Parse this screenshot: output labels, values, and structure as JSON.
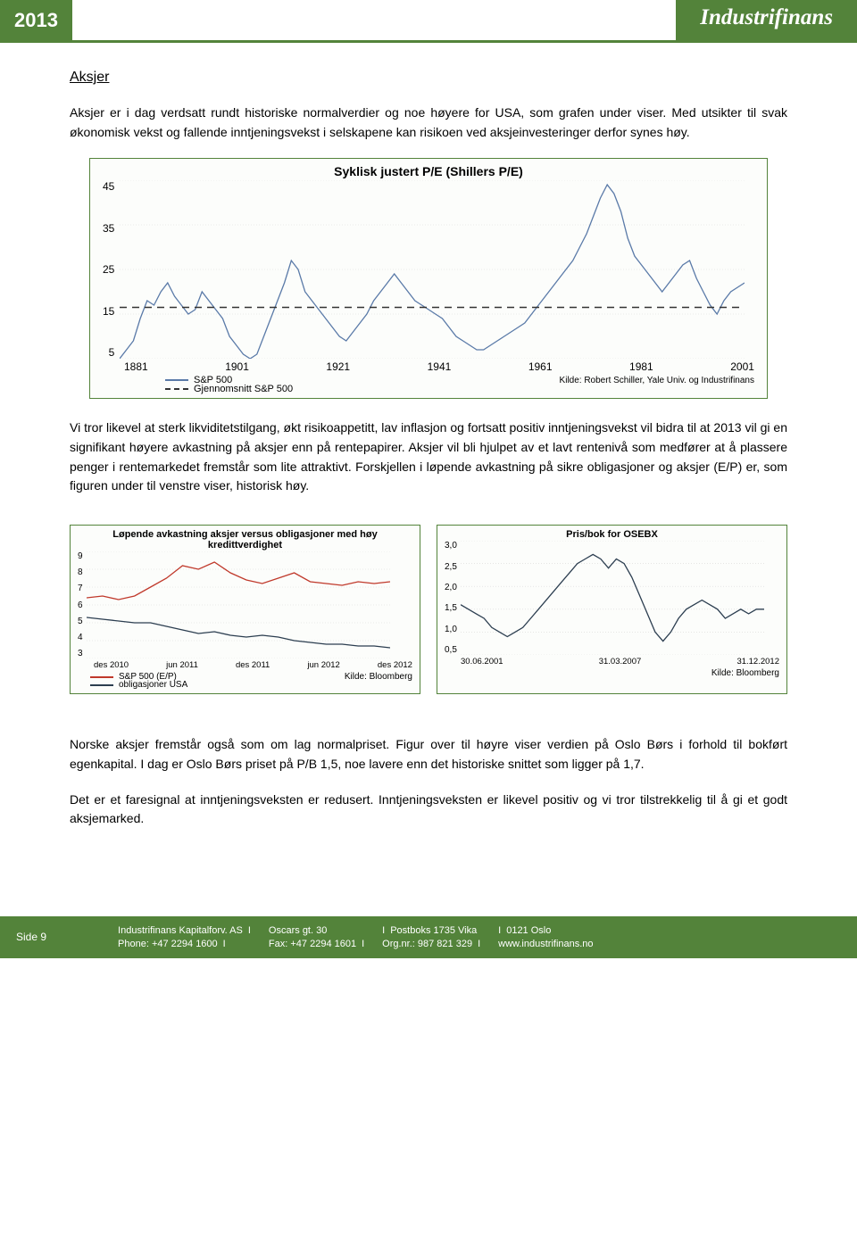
{
  "header": {
    "year": "2013",
    "logo": "Industrifinans"
  },
  "section_title": "Aksjer",
  "para1": "Aksjer er i dag verdsatt rundt historiske normalverdier og noe høyere for USA, som grafen under viser. Med utsikter til svak økonomisk vekst og fallende inntjeningsvekst i selskapene kan risikoen ved aksjeinvesteringer derfor synes høy.",
  "para2": "Vi tror likevel at sterk likviditetstilgang, økt risikoappetitt, lav inflasjon og fortsatt positiv inntjeningsvekst vil bidra til at 2013 vil gi en signifikant høyere avkastning på aksjer enn på rentepapirer. Aksjer vil bli hjulpet av et lavt rentenivå som medfører at å plassere penger i rentemarkedet fremstår som lite attraktivt. Forskjellen i løpende avkastning på sikre obligasjoner og aksjer (E/P) er, som figuren under til venstre viser, historisk høy.",
  "para3": "Norske aksjer fremstår også som om lag normalpriset. Figur over til høyre viser verdien på Oslo Børs i forhold til bokført egenkapital. I dag er Oslo Børs priset på P/B 1,5, noe lavere enn det historiske snittet som ligger på 1,7.",
  "para4": "Det er et faresignal at inntjeningsveksten er redusert. Inntjeningsveksten er likevel positiv og vi tror tilstrekkelig til å gi et godt aksjemarked.",
  "chart1": {
    "type": "line",
    "title": "Syklisk justert P/E (Shillers P/E)",
    "ylim": [
      5,
      45
    ],
    "yticks": [
      45,
      35,
      25,
      15,
      5
    ],
    "xlim": [
      1881,
      2013
    ],
    "xticks": [
      1881,
      1901,
      1921,
      1941,
      1961,
      1981,
      2001
    ],
    "mean_value": 16.5,
    "line_color": "#5a7aa8",
    "mean_color": "#333333",
    "grid_color": "#d8d8d8",
    "background": "#fcfdfb",
    "series": [
      5,
      7,
      9,
      14,
      18,
      17,
      20,
      22,
      19,
      17,
      15,
      16,
      20,
      18,
      16,
      14,
      10,
      8,
      6,
      5,
      6,
      10,
      14,
      18,
      22,
      27,
      25,
      20,
      18,
      16,
      14,
      12,
      10,
      9,
      11,
      13,
      15,
      18,
      20,
      22,
      24,
      22,
      20,
      18,
      17,
      16,
      15,
      14,
      12,
      10,
      9,
      8,
      7,
      7,
      8,
      9,
      10,
      11,
      12,
      13,
      15,
      17,
      19,
      21,
      23,
      25,
      27,
      30,
      33,
      37,
      41,
      44,
      42,
      38,
      32,
      28,
      26,
      24,
      22,
      20,
      22,
      24,
      26,
      27,
      23,
      20,
      17,
      15,
      18,
      20,
      21,
      22
    ],
    "legend": {
      "series1": "S&P 500",
      "series2": "Gjennomsnitt S&P 500",
      "source": "Kilde: Robert Schiller, Yale Univ. og Industrifinans"
    }
  },
  "chart2": {
    "type": "line",
    "title": "Løpende avkastning aksjer versus obligasjoner med høy kredittverdighet",
    "ylim": [
      3,
      9
    ],
    "yticks": [
      9,
      8,
      7,
      6,
      5,
      4,
      3
    ],
    "xticks": [
      "des 2010",
      "jun 2011",
      "des 2011",
      "jun 2012",
      "des 2012"
    ],
    "line1_color": "#c0392b",
    "line2_color": "#2c3e50",
    "grid_color": "#d8d8d8",
    "background": "#fcfdfb",
    "series1": [
      6.4,
      6.5,
      6.3,
      6.5,
      7.0,
      7.5,
      8.2,
      8.0,
      8.4,
      7.8,
      7.4,
      7.2,
      7.5,
      7.8,
      7.3,
      7.2,
      7.1,
      7.3,
      7.2,
      7.3
    ],
    "series2": [
      5.3,
      5.2,
      5.1,
      5.0,
      5.0,
      4.8,
      4.6,
      4.4,
      4.5,
      4.3,
      4.2,
      4.3,
      4.2,
      4.0,
      3.9,
      3.8,
      3.8,
      3.7,
      3.7,
      3.6
    ],
    "legend": {
      "series1": "S&P 500 (E/P)",
      "series2": "obligasjoner USA",
      "source": "Kilde: Bloomberg"
    }
  },
  "chart3": {
    "type": "line",
    "title": "Pris/bok for OSEBX",
    "ylim": [
      0.5,
      3.0
    ],
    "yticks": [
      "3,0",
      "2,5",
      "2,0",
      "1,5",
      "1,0",
      "0,5"
    ],
    "xticks": [
      "30.06.2001",
      "31.03.2007",
      "31.12.2012"
    ],
    "line_color": "#2c3e50",
    "grid_color": "#d8d8d8",
    "background": "#fcfdfb",
    "series": [
      1.6,
      1.5,
      1.4,
      1.3,
      1.1,
      1.0,
      0.9,
      1.0,
      1.1,
      1.3,
      1.5,
      1.7,
      1.9,
      2.1,
      2.3,
      2.5,
      2.6,
      2.7,
      2.6,
      2.4,
      2.6,
      2.5,
      2.2,
      1.8,
      1.4,
      1.0,
      0.8,
      1.0,
      1.3,
      1.5,
      1.6,
      1.7,
      1.6,
      1.5,
      1.3,
      1.4,
      1.5,
      1.4,
      1.5,
      1.5
    ],
    "source": "Kilde: Bloomberg"
  },
  "footer": {
    "page": "Side 9",
    "company": "Industrifinans Kapitalforv. AS",
    "phone_label": "Phone: +47 2294 1600",
    "address1": "Oscars gt. 30",
    "fax_label": "Fax: +47 2294 1601",
    "address2": "Postboks 1735 Vika",
    "org": "Org.nr.: 987 821 329",
    "postal": "0121 Oslo",
    "web": "www.industrifinans.no",
    "sep": "I"
  }
}
